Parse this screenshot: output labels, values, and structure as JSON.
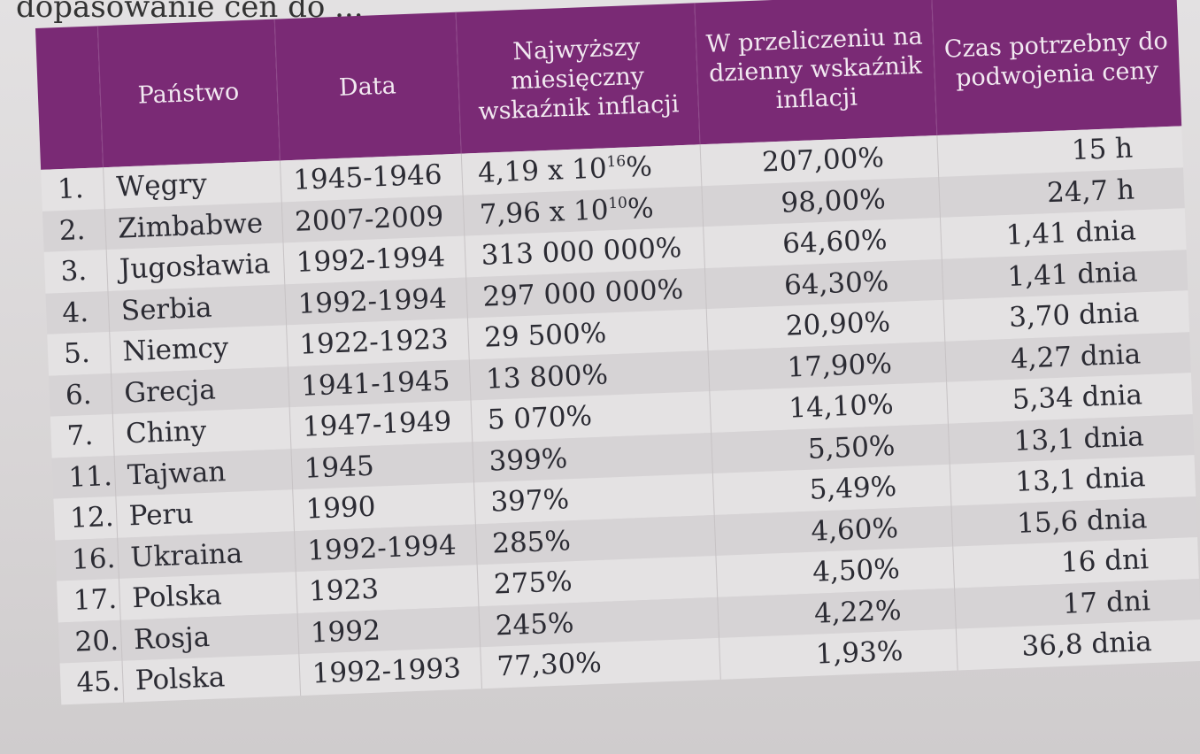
{
  "caption": "dopasowanie cen do ...",
  "table": {
    "headers": {
      "country": "Państwo",
      "date": "Data",
      "monthly": "Najwyższy miesięczny wskaźnik inflacji",
      "daily": "W przeliczeniu na dzienny wskaźnik inflacji",
      "doubling": "Czas potrzebny do podwojenia ceny"
    },
    "rows": [
      {
        "num": "1.",
        "country": "Węgry",
        "date": "1945-1946",
        "monthly_base": "4,19 x 10",
        "monthly_exp": "16",
        "monthly_suffix": "%",
        "daily": "207,00%",
        "doubling": "15 h"
      },
      {
        "num": "2.",
        "country": "Zimbabwe",
        "date": "2007-2009",
        "monthly_base": "7,96 x 10",
        "monthly_exp": "10",
        "monthly_suffix": "%",
        "daily": "98,00%",
        "doubling": "24,7 h"
      },
      {
        "num": "3.",
        "country": "Jugosławia",
        "date": "1992-1994",
        "monthly": "313 000 000%",
        "daily": "64,60%",
        "doubling": "1,41 dnia"
      },
      {
        "num": "4.",
        "country": "Serbia",
        "date": "1992-1994",
        "monthly": "297 000 000%",
        "daily": "64,30%",
        "doubling": "1,41 dnia"
      },
      {
        "num": "5.",
        "country": "Niemcy",
        "date": "1922-1923",
        "monthly": "29 500%",
        "daily": "20,90%",
        "doubling": "3,70 dnia"
      },
      {
        "num": "6.",
        "country": "Grecja",
        "date": "1941-1945",
        "monthly": "13 800%",
        "daily": "17,90%",
        "doubling": "4,27 dnia"
      },
      {
        "num": "7.",
        "country": "Chiny",
        "date": "1947-1949",
        "monthly": "5 070%",
        "daily": "14,10%",
        "doubling": "5,34 dnia"
      },
      {
        "num": "11.",
        "country": "Tajwan",
        "date": "1945",
        "monthly": "399%",
        "daily": "5,50%",
        "doubling": "13,1 dnia"
      },
      {
        "num": "12.",
        "country": "Peru",
        "date": "1990",
        "monthly": "397%",
        "daily": "5,49%",
        "doubling": "13,1 dnia"
      },
      {
        "num": "16.",
        "country": "Ukraina",
        "date": "1992-1994",
        "monthly": "285%",
        "daily": "4,60%",
        "doubling": "15,6 dnia"
      },
      {
        "num": "17.",
        "country": "Polska",
        "date": "1923",
        "monthly": "275%",
        "daily": "4,50%",
        "doubling": "16 dni"
      },
      {
        "num": "20.",
        "country": "Rosja",
        "date": "1992",
        "monthly": "245%",
        "daily": "4,22%",
        "doubling": "17 dni"
      },
      {
        "num": "45.",
        "country": "Polska",
        "date": "1992-1993",
        "monthly": "77,30%",
        "daily": "1,93%",
        "doubling": "36,8 dnia"
      }
    ]
  },
  "colors": {
    "header_bg": "#7a2a75",
    "header_text": "#f2e9f1",
    "row_light": "#e4e2e3",
    "row_dark": "#d6d3d5"
  }
}
